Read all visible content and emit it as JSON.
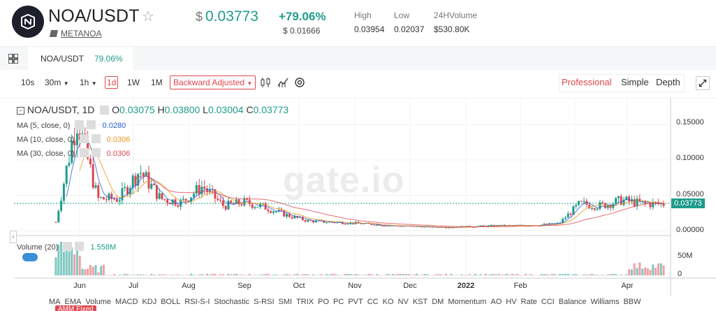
{
  "header": {
    "pair": "NOA/USDT",
    "project": "METANOA",
    "price_currency": "$",
    "price": "0.03773",
    "change": "+79.06%",
    "price_sub": "$ 0.01666",
    "high_label": "High",
    "high_value": "0.03954",
    "low_label": "Low",
    "low_value": "0.02037",
    "volume_label": "24HVolume",
    "volume_value": "$530.80K"
  },
  "tab": {
    "name": "NOA/USDT",
    "change": "79.06%"
  },
  "toolbar": {
    "timeframes": [
      "10s",
      "30m",
      "1h",
      "1d",
      "1W",
      "1M"
    ],
    "active_timeframe": "1d",
    "adjust": "Backward Adjusted",
    "views": [
      "Professional",
      "Simple",
      "Depth"
    ],
    "active_view": "Professional"
  },
  "legend": {
    "title": "NOA/USDT, 1D",
    "open_label": "O",
    "open": "0.03075",
    "high_label": "H",
    "high": "0.03800",
    "low_label": "L",
    "low": "0.03004",
    "close_label": "C",
    "close": "0.03773",
    "ma5_label": "MA (5, close, 0)",
    "ma5": "0.0280",
    "ma10_label": "MA (10, close, 0)",
    "ma10": "0.0306",
    "ma30_label": "MA (30, close, 0)",
    "ma30": "0.0306",
    "volume_label": "Volume (20)",
    "volume_value": "1.558M"
  },
  "axes": {
    "price_ticks": [
      "0.15000",
      "0.10000",
      "0.05000",
      "0.00000"
    ],
    "volume_ticks": [
      "50M",
      "0"
    ],
    "x_ticks": [
      "Jun",
      "Jul",
      "Aug",
      "Sep",
      "Oct",
      "Nov",
      "Dec",
      "2022",
      "Feb",
      "Apr"
    ],
    "current_price": "0.03773"
  },
  "watermark": "gate.io",
  "bottom_tabs": [
    "MA",
    "EMA",
    "Volume",
    "MACD",
    "KDJ",
    "BOLL",
    "RSI-S-I",
    "Stochastic",
    "S-RSI",
    "SMI",
    "TRIX",
    "PO",
    "PC",
    "PVT",
    "CC",
    "KO",
    "NV",
    "KST",
    "DM",
    "Momentum",
    "AO",
    "HV",
    "Rate",
    "CCI",
    "Balance",
    "Williams",
    "BBW"
  ],
  "amm_badge": "AMM Fixed",
  "colors": {
    "accent": "#e0474e",
    "up": "#1e9c8c",
    "down": "#e0474e",
    "ma5": "#2a5fd6",
    "ma10": "#e8951a",
    "ma30": "#e0474e"
  },
  "chart_data": {
    "type": "candlestick",
    "y_range": [
      0,
      0.17
    ],
    "series": [
      {
        "name": "price (approx close)",
        "x": [
          "May 24",
          "May 26",
          "Jun 1",
          "Jun 5",
          "Jun 10",
          "Jun 20",
          "Jul 1",
          "Jul 5",
          "Jul 15",
          "Aug 1",
          "Aug 15",
          "Sep 1",
          "Sep 15",
          "Oct 1",
          "Oct 15",
          "Nov 1",
          "Nov 15",
          "Dec 1",
          "Dec 15",
          "Jan 1",
          "Jan 15",
          "Feb 1",
          "Feb 15",
          "Mar 1",
          "Mar 15",
          "Mar 22",
          "Apr 1",
          "Apr 10",
          "Apr 20",
          "Apr 25"
        ],
        "values": [
          0.012,
          0.16,
          0.045,
          0.045,
          0.085,
          0.045,
          0.04,
          0.063,
          0.035,
          0.04,
          0.033,
          0.022,
          0.014,
          0.012,
          0.011,
          0.009,
          0.007,
          0.006,
          0.005,
          0.005,
          0.006,
          0.007,
          0.007,
          0.008,
          0.01,
          0.038,
          0.035,
          0.043,
          0.038,
          0.03773
        ]
      }
    ],
    "volume": {
      "x": [
        "May 24",
        "May 26",
        "Jun 1",
        "Jun 5",
        "Apr 1",
        "Apr 10",
        "Apr 20",
        "Apr 25"
      ],
      "values": [
        50,
        60,
        25,
        15,
        22,
        25,
        20,
        15
      ]
    }
  }
}
